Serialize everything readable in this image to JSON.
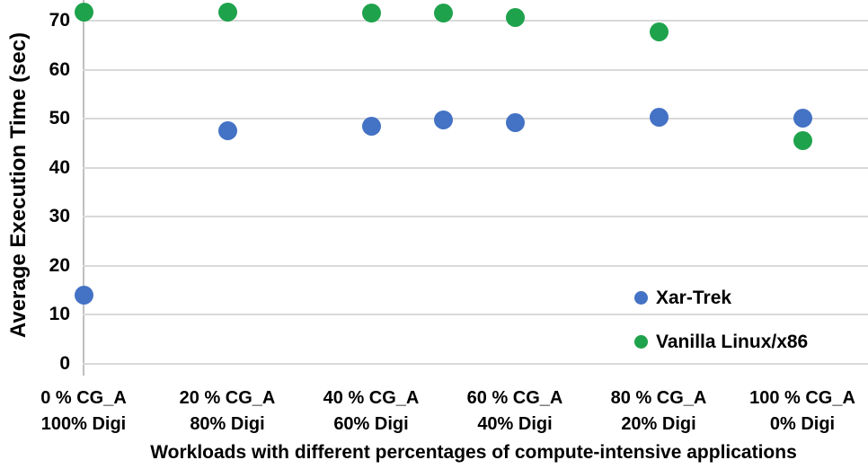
{
  "chart_data": {
    "type": "scatter",
    "title": "",
    "xlabel": "Workloads with different percentages of compute-intensive applications",
    "ylabel": "Average Execution Time (sec)",
    "x": [
      0,
      20,
      40,
      50,
      60,
      80,
      100
    ],
    "series": [
      {
        "name": "Xar-Trek",
        "color": "#4472c4",
        "values": [
          14.0,
          47.5,
          48.4,
          49.8,
          49.2,
          50.3,
          50.2
        ]
      },
      {
        "name": "Vanilla Linux/x86",
        "color": "#1fa24c",
        "values": [
          71.8,
          71.8,
          71.5,
          71.6,
          70.7,
          67.8,
          45.5
        ]
      }
    ],
    "y_ticks": [
      0,
      10,
      20,
      30,
      40,
      50,
      60,
      70
    ],
    "ylim": [
      0,
      74.2
    ],
    "xlim": [
      0,
      100
    ],
    "x_tick_labels": [
      {
        "x": 0,
        "line1": "0 % CG_A",
        "line2": "100% Digi"
      },
      {
        "x": 20,
        "line1": "20 % CG_A",
        "line2": "80% Digi"
      },
      {
        "x": 40,
        "line1": "40 % CG_A",
        "line2": "60% Digi"
      },
      {
        "x": 60,
        "line1": "60 % CG_A",
        "line2": "40% Digi"
      },
      {
        "x": 80,
        "line1": "80 % CG_A",
        "line2": "20% Digi"
      },
      {
        "x": 100,
        "line1": "100 % CG_A",
        "line2": "0% Digi"
      }
    ],
    "grid": true,
    "legend": {
      "position": "right-middle",
      "entries": [
        "Xar-Trek",
        "Vanilla Linux/x86"
      ]
    },
    "colors": {
      "gridline": "#d9d9d9",
      "axis": "#bfbfbf",
      "text": "#000000"
    }
  }
}
